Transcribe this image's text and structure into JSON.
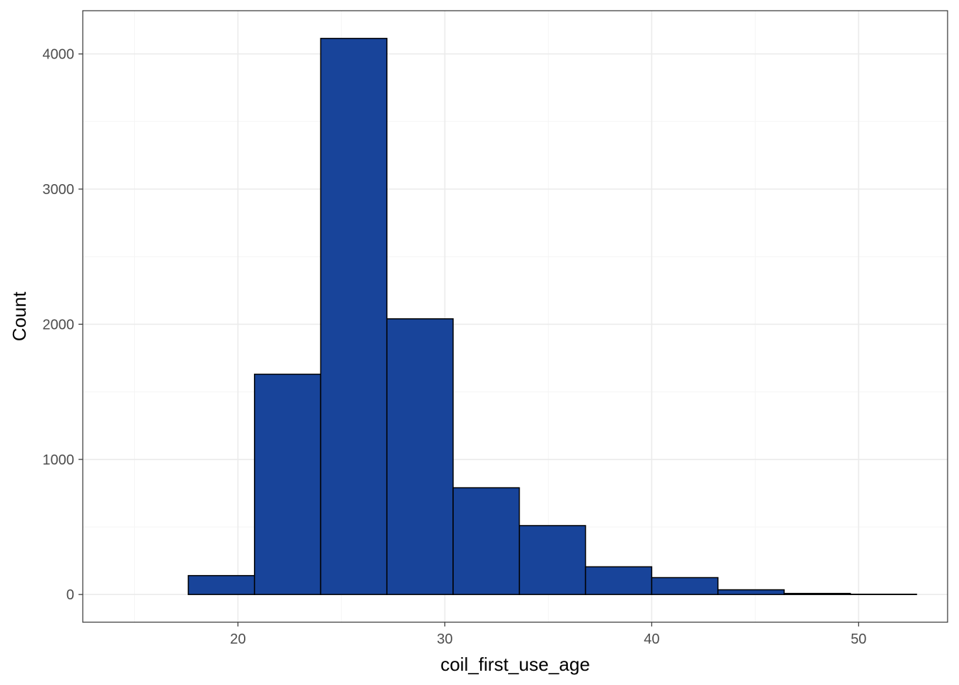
{
  "chart_data": {
    "type": "bar",
    "subtype": "histogram",
    "title": "",
    "xlabel": "coil_first_use_age",
    "ylabel": "Count",
    "bin_width": 3.2,
    "bins": [
      {
        "x0": 14.4,
        "x1": 17.6,
        "count": 0
      },
      {
        "x0": 17.6,
        "x1": 20.8,
        "count": 140
      },
      {
        "x0": 20.8,
        "x1": 24.0,
        "count": 1630
      },
      {
        "x0": 24.0,
        "x1": 27.2,
        "count": 4115
      },
      {
        "x0": 27.2,
        "x1": 30.4,
        "count": 2040
      },
      {
        "x0": 30.4,
        "x1": 33.6,
        "count": 790
      },
      {
        "x0": 33.6,
        "x1": 36.8,
        "count": 510
      },
      {
        "x0": 36.8,
        "x1": 40.0,
        "count": 205
      },
      {
        "x0": 40.0,
        "x1": 43.2,
        "count": 125
      },
      {
        "x0": 43.2,
        "x1": 46.4,
        "count": 35
      },
      {
        "x0": 46.4,
        "x1": 49.6,
        "count": 8
      },
      {
        "x0": 49.6,
        "x1": 52.8,
        "count": 2
      }
    ],
    "xlim": [
      12.5,
      54.3
    ],
    "ylim": [
      -205,
      4320
    ],
    "x_ticks": [
      20,
      30,
      40,
      50
    ],
    "x_tick_labels": [
      "20",
      "30",
      "40",
      "50"
    ],
    "y_ticks": [
      0,
      1000,
      2000,
      3000,
      4000
    ],
    "y_tick_labels": [
      "0",
      "1000",
      "2000",
      "3000",
      "4000"
    ],
    "grid": true,
    "theme": "bw",
    "colors": {
      "bar_fill": "#18449A",
      "bar_outline": "#000000",
      "grid_major": "#EBEBEB",
      "grid_minor": "#F5F5F5",
      "panel_border": "#333333",
      "tick_text": "#4D4D4D"
    }
  }
}
